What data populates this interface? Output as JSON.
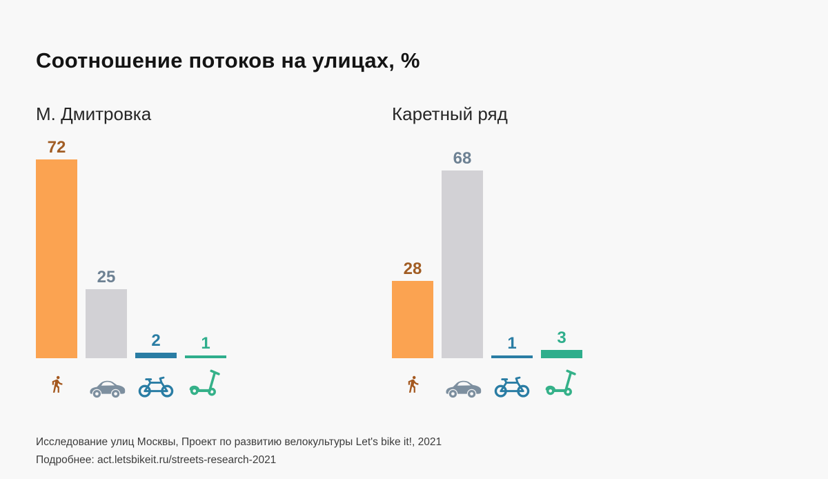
{
  "title": "Соотношение потоков на улицах, %",
  "footer": {
    "line1": "Исследование улиц Москвы, Проект по развитию велокультуры Let's bike it!, 2021",
    "line2": "Подробнее: act.letsbikeit.ru/streets-research-2021"
  },
  "colors": {
    "background": "#f8f8f8",
    "title_text": "#141414",
    "subtitle_text": "#262626",
    "footer_text": "#3b3b3b"
  },
  "categories": [
    {
      "key": "pedestrian",
      "icon": "pedestrian-icon",
      "bar_color": "#FBA351",
      "label_color": "#A15D24",
      "icon_color": "#A4581F"
    },
    {
      "key": "car",
      "icon": "car-icon",
      "bar_color": "#D2D1D5",
      "label_color": "#6D8193",
      "icon_color": "#7D8F9F"
    },
    {
      "key": "bicycle",
      "icon": "bicycle-icon",
      "bar_color": "#2A7DA4",
      "label_color": "#2A7DA4",
      "icon_color": "#2A7DA4"
    },
    {
      "key": "scooter",
      "icon": "scooter-icon",
      "bar_color": "#2FAE8C",
      "label_color": "#2FAE8C",
      "icon_color": "#35B189"
    }
  ],
  "chart_data": [
    {
      "type": "bar",
      "title": "М. Дмитровка",
      "categories": [
        "pedestrian",
        "car",
        "bicycle",
        "scooter"
      ],
      "values": [
        72,
        25,
        2,
        1
      ],
      "unit": "%",
      "ylim": [
        0,
        80
      ],
      "grid": false,
      "legend": "icons below bars"
    },
    {
      "type": "bar",
      "title": "Каретный ряд",
      "categories": [
        "pedestrian",
        "car",
        "bicycle",
        "scooter"
      ],
      "values": [
        28,
        68,
        1,
        3
      ],
      "unit": "%",
      "ylim": [
        0,
        80
      ],
      "grid": false,
      "legend": "icons below bars"
    }
  ]
}
